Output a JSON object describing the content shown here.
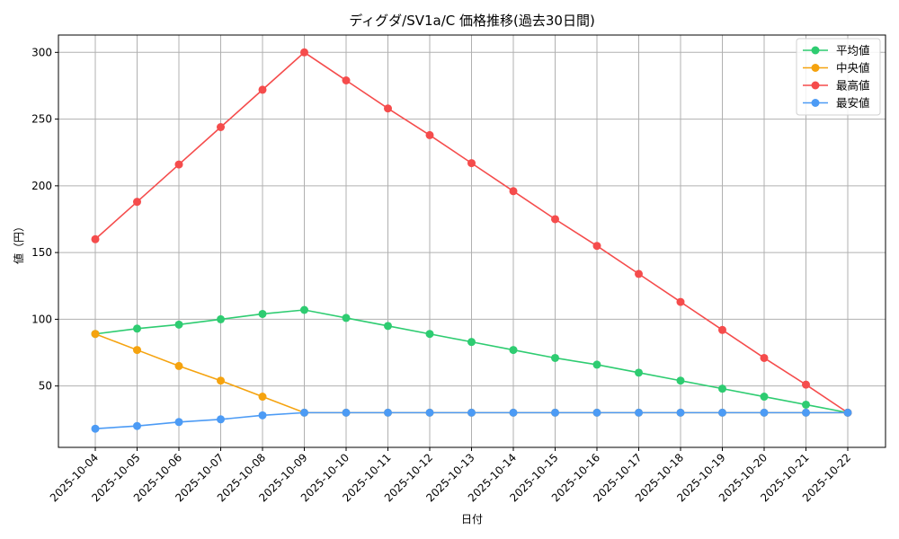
{
  "chart_data": {
    "type": "line",
    "title": "ディグダ/SV1a/C 価格推移(過去30日間)",
    "xlabel": "日付",
    "ylabel": "値（円）",
    "ylim": [
      4,
      313
    ],
    "yticks": [
      50,
      100,
      150,
      200,
      250,
      300
    ],
    "grid": true,
    "legend_position": "upper right",
    "categories": [
      "2025-10-04",
      "2025-10-05",
      "2025-10-06",
      "2025-10-07",
      "2025-10-08",
      "2025-10-09",
      "2025-10-10",
      "2025-10-11",
      "2025-10-12",
      "2025-10-13",
      "2025-10-14",
      "2025-10-15",
      "2025-10-16",
      "2025-10-17",
      "2025-10-18",
      "2025-10-19",
      "2025-10-20",
      "2025-10-21",
      "2025-10-22"
    ],
    "series": [
      {
        "name": "平均値",
        "color": "#2ecc71",
        "values": [
          89,
          93,
          96,
          100,
          104,
          107,
          101,
          95,
          89,
          83,
          77,
          71,
          66,
          60,
          54,
          48,
          42,
          36,
          30
        ]
      },
      {
        "name": "中央値",
        "color": "#f5a30f",
        "values": [
          89,
          77,
          65,
          54,
          42,
          30,
          30,
          30,
          30,
          30,
          30,
          30,
          30,
          30,
          30,
          30,
          30,
          30,
          30
        ]
      },
      {
        "name": "最高値",
        "color": "#f54c4c",
        "values": [
          160,
          188,
          216,
          244,
          272,
          300,
          279,
          258,
          238,
          217,
          196,
          175,
          155,
          134,
          113,
          92,
          71,
          51,
          30
        ]
      },
      {
        "name": "最安値",
        "color": "#4c9bf5",
        "values": [
          18,
          20,
          23,
          25,
          28,
          30,
          30,
          30,
          30,
          30,
          30,
          30,
          30,
          30,
          30,
          30,
          30,
          30,
          30
        ]
      }
    ]
  }
}
